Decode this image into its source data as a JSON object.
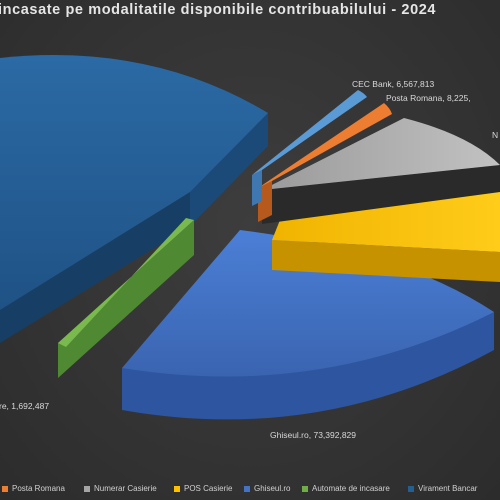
{
  "chart_data": {
    "type": "pie",
    "title": "incasate pe modalitatile disponibile contribuabilului - 2024",
    "slices": [
      {
        "name": "CEC Bank",
        "value": 6567813,
        "label": "CEC Bank, 6,567,813",
        "color": "#5b9bd5"
      },
      {
        "name": "Posta Romana",
        "value": 8225000,
        "label": "Posta Romana, 8,225,",
        "color": "#ed7d31"
      },
      {
        "name": "Numerar Casierie",
        "value": null,
        "label": "N",
        "color": "#a5a5a5"
      },
      {
        "name": "POS Casierie",
        "value": null,
        "label": "",
        "color": "#ffc000"
      },
      {
        "name": "Ghiseul.ro",
        "value": 73392829,
        "label": "Ghiseul.ro, 73,392,829",
        "color": "#4472c4"
      },
      {
        "name": "Automate de incasare",
        "value": 1692487,
        "label": "re, 1,692,487",
        "color": "#70ad47"
      },
      {
        "name": "Virament Bancar",
        "value": null,
        "label": "",
        "color": "#255e91"
      }
    ],
    "legend": [
      "Posta Romana",
      "Numerar Casierie",
      "POS Casierie",
      "Ghiseul.ro",
      "Automate de incasare",
      "Virament Bancar"
    ],
    "legend_position": "bottom"
  }
}
